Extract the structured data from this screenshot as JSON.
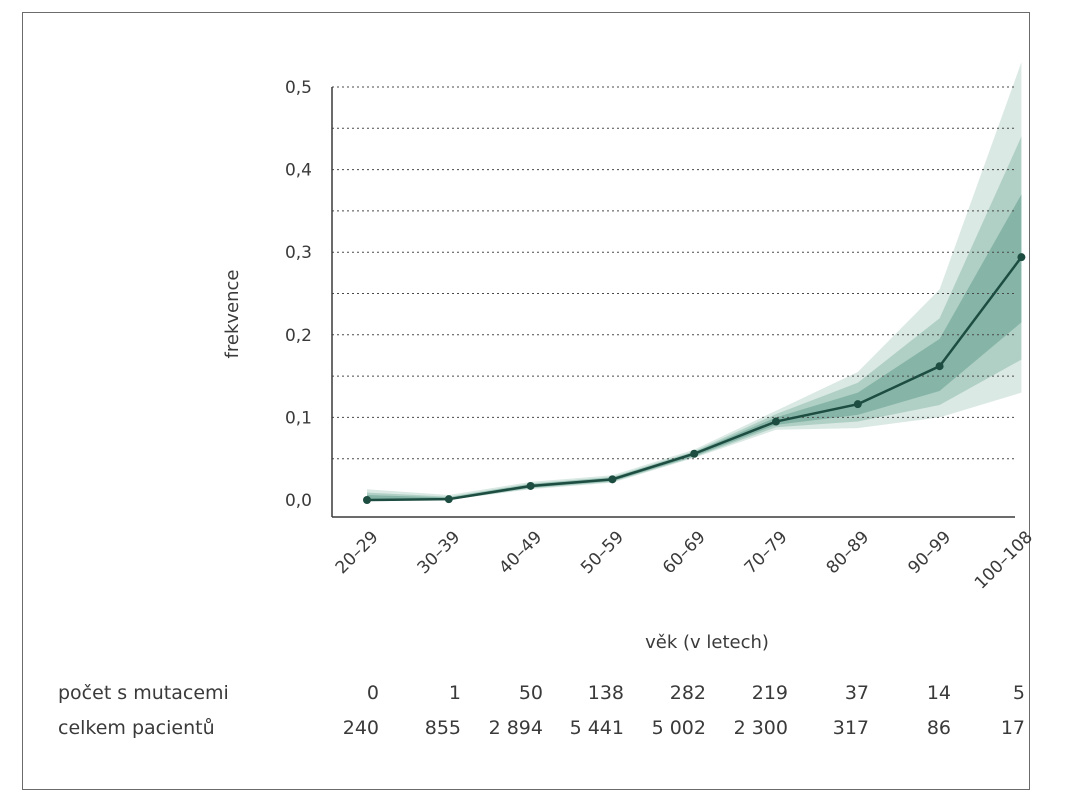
{
  "chart_data": {
    "type": "line",
    "title": "",
    "xlabel": "věk (v letech)",
    "ylabel": "frekvence",
    "categories": [
      "20–29",
      "30–39",
      "40–49",
      "50–59",
      "60–69",
      "70–79",
      "80–89",
      "90–99",
      "100–108"
    ],
    "series": [
      {
        "values": [
          0.0,
          0.001,
          0.017,
          0.025,
          0.056,
          0.095,
          0.116,
          0.162,
          0.294
        ]
      }
    ],
    "bands": [
      {
        "lower": [
          0.0,
          0.0,
          0.013,
          0.021,
          0.051,
          0.085,
          0.087,
          0.1,
          0.13
        ],
        "upper": [
          0.013,
          0.006,
          0.022,
          0.03,
          0.061,
          0.108,
          0.155,
          0.255,
          0.53
        ]
      },
      {
        "lower": [
          0.0,
          0.0,
          0.014,
          0.022,
          0.052,
          0.088,
          0.095,
          0.115,
          0.17
        ],
        "upper": [
          0.009,
          0.004,
          0.02,
          0.028,
          0.059,
          0.104,
          0.142,
          0.22,
          0.44
        ]
      },
      {
        "lower": [
          0.0,
          0.0,
          0.015,
          0.023,
          0.053,
          0.091,
          0.103,
          0.132,
          0.215
        ],
        "upper": [
          0.006,
          0.003,
          0.019,
          0.027,
          0.058,
          0.1,
          0.13,
          0.195,
          0.37
        ]
      }
    ],
    "ylim": [
      0,
      0.5
    ],
    "yticks": [
      0.0,
      0.1,
      0.2,
      0.3,
      0.4,
      0.5
    ],
    "ytick_labels": [
      "0,0",
      "0,1",
      "0,2",
      "0,3",
      "0,4",
      "0,5"
    ],
    "gridlines": [
      0.05,
      0.1,
      0.15,
      0.2,
      0.25,
      0.3,
      0.35,
      0.4,
      0.45,
      0.5
    ],
    "grid": "dotted horizontal",
    "legend": "none",
    "colors": {
      "line": "#1d4d40",
      "band_outer": "#d4e5df",
      "band_mid": "#a9cbc0",
      "band_inner": "#7fb0a2"
    }
  },
  "table": {
    "rows": [
      {
        "label": "počet s mutacemi",
        "values": [
          "0",
          "1",
          "50",
          "138",
          "282",
          "219",
          "37",
          "14",
          "5"
        ]
      },
      {
        "label": "celkem pacientů",
        "values": [
          "240",
          "855",
          "2 894",
          "5 441",
          "5 002",
          "2 300",
          "317",
          "86",
          "17"
        ]
      }
    ]
  }
}
